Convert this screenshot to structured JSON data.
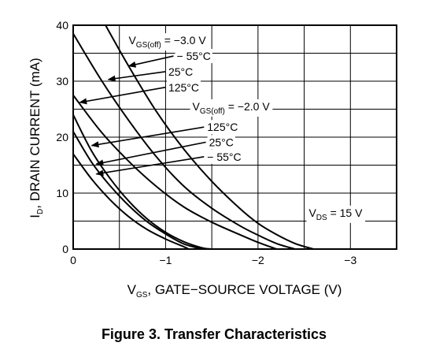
{
  "chart_data": {
    "type": "line",
    "caption": "Figure 3. Transfer Characteristics",
    "xlabel": {
      "main": "V",
      "sub": "GS",
      "rest": ", GATE−SOURCE VOLTAGE (V)"
    },
    "ylabel": {
      "main": "I",
      "sub": "D",
      "rest": ", DRAIN CURRENT (mA)"
    },
    "xlim": [
      0,
      -3.5
    ],
    "ylim": [
      0,
      40
    ],
    "x_ticks": [
      {
        "value": 0,
        "label": "0"
      },
      {
        "value": -1,
        "label": "−1"
      },
      {
        "value": -2,
        "label": "−2"
      },
      {
        "value": -3,
        "label": "−3"
      }
    ],
    "y_ticks": [
      {
        "value": 0,
        "label": "0"
      },
      {
        "value": 10,
        "label": "10"
      },
      {
        "value": 20,
        "label": "20"
      },
      {
        "value": 30,
        "label": "30"
      },
      {
        "value": 40,
        "label": "40"
      }
    ],
    "x_grid_step": 0.5,
    "y_grid_step": 5,
    "grid": true,
    "groups": [
      {
        "label": {
          "main": "V",
          "sub": "GS(off)",
          "rest": " = −3.0 V"
        }
      },
      {
        "label": {
          "main": "V",
          "sub": "GS(off)",
          "rest": " = −2.0 V"
        }
      }
    ],
    "series": [
      {
        "name": "− 55°C",
        "group": 0,
        "x": [
          -0.35,
          -0.6,
          -0.9,
          -1.2,
          -1.5,
          -1.8,
          -2.0,
          -2.2,
          -2.4,
          -2.6
        ],
        "y": [
          40,
          32.7,
          24.6,
          17.8,
          12.1,
          7.3,
          4.6,
          2.6,
          1.0,
          0
        ]
      },
      {
        "name": "25°C",
        "group": 0,
        "x": [
          0,
          -0.3,
          -0.6,
          -0.9,
          -1.2,
          -1.5,
          -1.8,
          -2.0,
          -2.2,
          -2.4
        ],
        "y": [
          38.5,
          30.3,
          23.0,
          16.5,
          11.2,
          7.3,
          4.2,
          2.5,
          1.0,
          0
        ]
      },
      {
        "name": "125°C",
        "group": 0,
        "x": [
          0,
          -0.3,
          -0.6,
          -0.9,
          -1.2,
          -1.5,
          -1.8,
          -2.0,
          -2.2
        ],
        "y": [
          27.5,
          21.0,
          15.7,
          11.2,
          7.5,
          4.8,
          2.6,
          1.2,
          0
        ]
      },
      {
        "name": "125°C",
        "group": 1,
        "x": [
          0,
          -0.2,
          -0.4,
          -0.6,
          -0.8,
          -1.0,
          -1.2,
          -1.25
        ],
        "y": [
          17.0,
          12.5,
          8.8,
          5.8,
          3.5,
          1.8,
          0.4,
          0
        ]
      },
      {
        "name": "25°C",
        "group": 1,
        "x": [
          0,
          -0.2,
          -0.4,
          -0.6,
          -0.8,
          -1.0,
          -1.2,
          -1.4
        ],
        "y": [
          21.0,
          15.5,
          11.3,
          7.8,
          4.9,
          2.7,
          0.9,
          0
        ]
      },
      {
        "name": "− 55°C",
        "group": 1,
        "x": [
          0,
          -0.2,
          -0.4,
          -0.6,
          -0.8,
          -1.0,
          -1.2,
          -1.4,
          -1.5
        ],
        "y": [
          24.0,
          17.5,
          12.6,
          8.6,
          5.4,
          3.0,
          1.3,
          0.2,
          0
        ]
      }
    ],
    "annotations": [
      {
        "id": "g0-m55",
        "text": "− 55°C",
        "text_at": [
          -1.12,
          34.5
        ],
        "arrow_to": [
          -0.6,
          32.7
        ]
      },
      {
        "id": "g0-25",
        "text": "25°C",
        "text_at": [
          -1.03,
          31.7
        ],
        "arrow_to": [
          -0.38,
          30.3
        ]
      },
      {
        "id": "g0-125",
        "text": "125°C",
        "text_at": [
          -1.03,
          28.9
        ],
        "arrow_to": [
          -0.07,
          26.2
        ]
      },
      {
        "id": "g1-125",
        "text": "125°C",
        "text_at": [
          -1.45,
          21.8
        ],
        "arrow_to": [
          -0.2,
          18.5
        ]
      },
      {
        "id": "g1-25",
        "text": "25°C",
        "text_at": [
          -1.47,
          19.1
        ],
        "arrow_to": [
          -0.25,
          15.2
        ]
      },
      {
        "id": "g1-m55",
        "text": "− 55°C",
        "text_at": [
          -1.45,
          16.5
        ],
        "arrow_to": [
          -0.25,
          13.4
        ]
      }
    ],
    "group_label_positions": [
      {
        "group": 0,
        "at": [
          -0.6,
          37.3
        ]
      },
      {
        "group": 1,
        "at": [
          -1.29,
          25.5
        ]
      }
    ],
    "condition": {
      "main": "V",
      "sub": "DS",
      "rest": " = 15 V",
      "at": [
        -2.55,
        6.5
      ]
    }
  }
}
